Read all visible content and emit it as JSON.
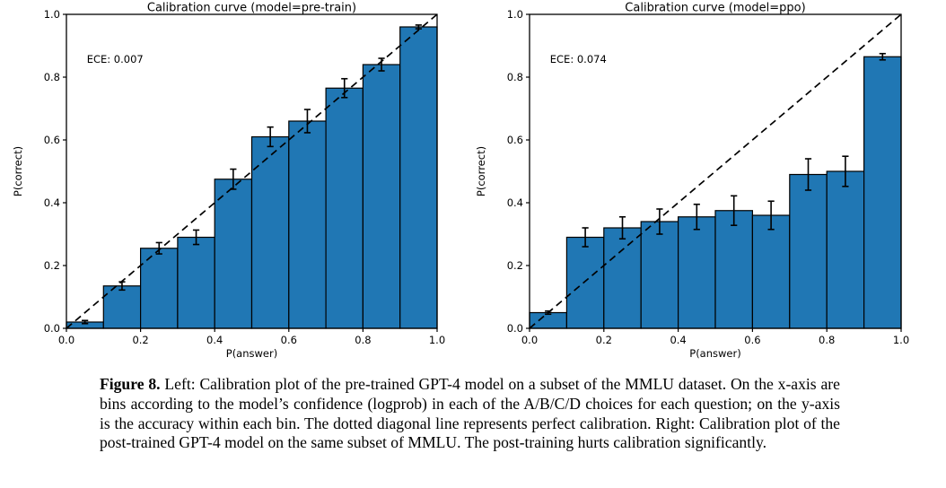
{
  "page": {
    "background": "#ffffff"
  },
  "colors": {
    "bar_fill": "#2077b4",
    "bar_edge": "#000000",
    "axis": "#000000",
    "diagonal": "#000000",
    "error_bar": "#000000",
    "text": "#000000"
  },
  "chart_data": [
    {
      "type": "bar",
      "title": "Calibration curve (model=pre-train)",
      "annotation": "ECE: 0.007",
      "xlabel": "P(answer)",
      "ylabel": "P(correct)",
      "xlim": [
        0,
        1
      ],
      "ylim": [
        0,
        1
      ],
      "xticks": [
        0.0,
        0.2,
        0.4,
        0.6,
        0.8,
        1.0
      ],
      "yticks": [
        0.0,
        0.2,
        0.4,
        0.6,
        0.8,
        1.0
      ],
      "bin_width": 0.1,
      "categories": [
        "0.0-0.1",
        "0.1-0.2",
        "0.2-0.3",
        "0.3-0.4",
        "0.4-0.5",
        "0.5-0.6",
        "0.6-0.7",
        "0.7-0.8",
        "0.8-0.9",
        "0.9-1.0"
      ],
      "values": [
        0.02,
        0.135,
        0.255,
        0.29,
        0.475,
        0.61,
        0.66,
        0.765,
        0.84,
        0.96
      ],
      "errors": [
        0.005,
        0.013,
        0.018,
        0.023,
        0.032,
        0.031,
        0.037,
        0.03,
        0.02,
        0.006
      ],
      "diagonal": true,
      "grid": false,
      "legend": null
    },
    {
      "type": "bar",
      "title": "Calibration curve (model=ppo)",
      "annotation": "ECE: 0.074",
      "xlabel": "P(answer)",
      "ylabel": "P(correct)",
      "xlim": [
        0,
        1
      ],
      "ylim": [
        0,
        1
      ],
      "xticks": [
        0.0,
        0.2,
        0.4,
        0.6,
        0.8,
        1.0
      ],
      "yticks": [
        0.0,
        0.2,
        0.4,
        0.6,
        0.8,
        1.0
      ],
      "bin_width": 0.1,
      "categories": [
        "0.0-0.1",
        "0.1-0.2",
        "0.2-0.3",
        "0.3-0.4",
        "0.4-0.5",
        "0.5-0.6",
        "0.6-0.7",
        "0.7-0.8",
        "0.8-0.9",
        "0.9-1.0"
      ],
      "values": [
        0.05,
        0.29,
        0.32,
        0.34,
        0.355,
        0.375,
        0.36,
        0.49,
        0.5,
        0.865
      ],
      "errors": [
        0.005,
        0.03,
        0.035,
        0.04,
        0.04,
        0.047,
        0.045,
        0.05,
        0.048,
        0.01
      ],
      "diagonal": true,
      "grid": false,
      "legend": null
    }
  ],
  "figure": {
    "caption_label": "Figure 8.",
    "caption_text": " Left: Calibration plot of the pre-trained GPT-4 model on a subset of the MMLU dataset. On the x-axis are bins according to the model’s confidence (logprob) in each of the A/B/C/D choices for each question; on the y-axis is the accuracy within each bin. The dotted diagonal line represents perfect calibration. Right: Calibration plot of the post-trained GPT-4 model on the same subset of MMLU. The post-training hurts calibration significantly."
  }
}
